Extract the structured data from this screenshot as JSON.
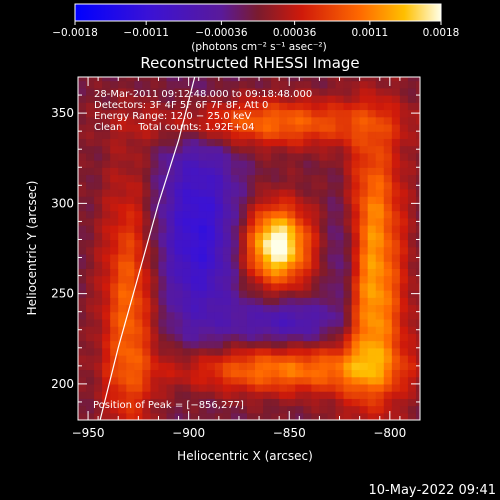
{
  "chart_data": {
    "type": "heatmap",
    "title": "Reconstructed RHESSI Image",
    "xlabel": "Heliocentric X (arcsec)",
    "ylabel": "Heliocentric Y (arcsec)",
    "xlim": [
      -955,
      -785
    ],
    "ylim": [
      180,
      370
    ],
    "x_ticks": [
      -950,
      -900,
      -850,
      -800
    ],
    "y_ticks": [
      200,
      250,
      300,
      350
    ],
    "x_tick_labels": [
      "−950",
      "−900",
      "−850",
      "−800"
    ],
    "y_tick_labels": [
      "200",
      "250",
      "300",
      "350"
    ],
    "colorbar": {
      "range": [
        -0.0018,
        0.0018
      ],
      "ticks": [
        -0.0018,
        -0.0011,
        -0.00036,
        0.00036,
        0.0011,
        0.0018
      ],
      "tick_labels": [
        "−0.0018",
        "−0.0011",
        "−0.00036",
        "0.00036",
        "0.0011",
        "0.0018"
      ],
      "unit_label": "(photons cm⁻² s⁻¹ asec⁻²)"
    },
    "annotations": [
      "28‑Mar‑2011 09:12:48.000 to 09:18:48.000",
      "Detectors: 3F 4F 5F 6F 7F 8F, Att 0",
      "Energy Range: 12.0 − 25.0 keV",
      "Clean     Total counts: 1.92E+04"
    ],
    "peak_label": "Position of Peak = [−856,277]",
    "peak": [
      -856,
      277
    ],
    "limb_curve": [
      [
        -944,
        180
      ],
      [
        -935,
        220
      ],
      [
        -925,
        260
      ],
      [
        -915,
        300
      ],
      [
        -905,
        335
      ],
      [
        -897,
        370
      ]
    ],
    "features": [
      {
        "name": "core",
        "x": -856,
        "y": 277,
        "sx": 11,
        "sy": 15,
        "amp": 1.0
      },
      {
        "name": "ring-right-upper",
        "x": -808,
        "y": 290,
        "sx": 10,
        "sy": 40,
        "amp": 0.55
      },
      {
        "name": "ring-right-lower",
        "x": -810,
        "y": 225,
        "sx": 12,
        "sy": 30,
        "amp": 0.5
      },
      {
        "name": "ring-bottom",
        "x": -855,
        "y": 208,
        "sx": 38,
        "sy": 9,
        "amp": 0.55
      },
      {
        "name": "ring-top",
        "x": -860,
        "y": 345,
        "sx": 40,
        "sy": 9,
        "amp": 0.5
      },
      {
        "name": "ring-left",
        "x": -930,
        "y": 240,
        "sx": 9,
        "sy": 50,
        "amp": 0.5
      },
      {
        "name": "moat-left",
        "x": -895,
        "y": 285,
        "sx": 14,
        "sy": 40,
        "amp": -0.55
      },
      {
        "name": "moat-bottom",
        "x": -850,
        "y": 235,
        "sx": 20,
        "sy": 9,
        "amp": -0.35
      },
      {
        "name": "moat-right",
        "x": -823,
        "y": 265,
        "sx": 6,
        "sy": 30,
        "amp": -0.35
      }
    ]
  },
  "timestamp": "10‑May‑2022 09:41"
}
